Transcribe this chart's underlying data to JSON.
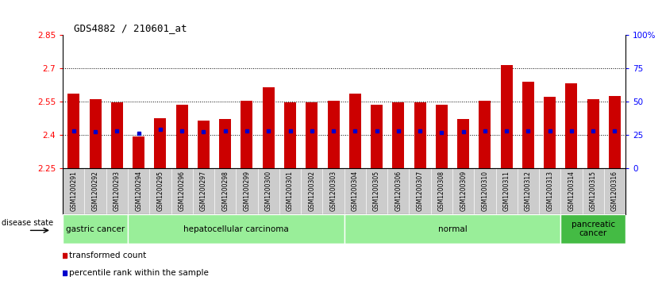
{
  "title": "GDS4882 / 210601_at",
  "samples": [
    "GSM1200291",
    "GSM1200292",
    "GSM1200293",
    "GSM1200294",
    "GSM1200295",
    "GSM1200296",
    "GSM1200297",
    "GSM1200298",
    "GSM1200299",
    "GSM1200300",
    "GSM1200301",
    "GSM1200302",
    "GSM1200303",
    "GSM1200304",
    "GSM1200305",
    "GSM1200306",
    "GSM1200307",
    "GSM1200308",
    "GSM1200309",
    "GSM1200310",
    "GSM1200311",
    "GSM1200312",
    "GSM1200313",
    "GSM1200314",
    "GSM1200315",
    "GSM1200316"
  ],
  "bar_values": [
    2.585,
    2.56,
    2.545,
    2.395,
    2.475,
    2.535,
    2.465,
    2.47,
    2.555,
    2.615,
    2.545,
    2.545,
    2.555,
    2.585,
    2.535,
    2.545,
    2.545,
    2.535,
    2.47,
    2.555,
    2.715,
    2.64,
    2.57,
    2.63,
    2.56,
    2.575
  ],
  "percentile_values": [
    2.42,
    2.415,
    2.42,
    2.408,
    2.425,
    2.42,
    2.415,
    2.42,
    2.42,
    2.42,
    2.42,
    2.42,
    2.42,
    2.42,
    2.42,
    2.42,
    2.42,
    2.41,
    2.415,
    2.42,
    2.42,
    2.42,
    2.42,
    2.42,
    2.42,
    2.42
  ],
  "ymin": 2.25,
  "ymax": 2.85,
  "yticks": [
    2.25,
    2.4,
    2.55,
    2.7,
    2.85
  ],
  "ytick_labels": [
    "2.25",
    "2.4",
    "2.55",
    "2.7",
    "2.85"
  ],
  "y2ticks": [
    0,
    25,
    50,
    75,
    100
  ],
  "y2tick_labels": [
    "0",
    "25",
    "50",
    "75",
    "100%"
  ],
  "bar_color": "#cc0000",
  "blue_color": "#0000cc",
  "groups": [
    {
      "label": "gastric cancer",
      "start": 0,
      "end": 3,
      "color": "#99ee99"
    },
    {
      "label": "hepatocellular carcinoma",
      "start": 3,
      "end": 13,
      "color": "#99ee99"
    },
    {
      "label": "normal",
      "start": 13,
      "end": 23,
      "color": "#99ee99"
    },
    {
      "label": "pancreatic\ncancer",
      "start": 23,
      "end": 26,
      "color": "#44bb44"
    }
  ],
  "group_dividers": [
    3,
    13,
    23
  ],
  "legend_items": [
    {
      "label": "transformed count",
      "color": "#cc0000"
    },
    {
      "label": "percentile rank within the sample",
      "color": "#0000cc"
    }
  ],
  "bar_width": 0.55,
  "dotted_yticks": [
    2.4,
    2.55,
    2.7
  ],
  "background_color": "#ffffff",
  "xtick_bg_color": "#cccccc",
  "title_fontsize": 9,
  "tick_fontsize": 7.5,
  "xtick_fontsize": 5.5,
  "group_fontsize": 7.5,
  "legend_fontsize": 7.5
}
